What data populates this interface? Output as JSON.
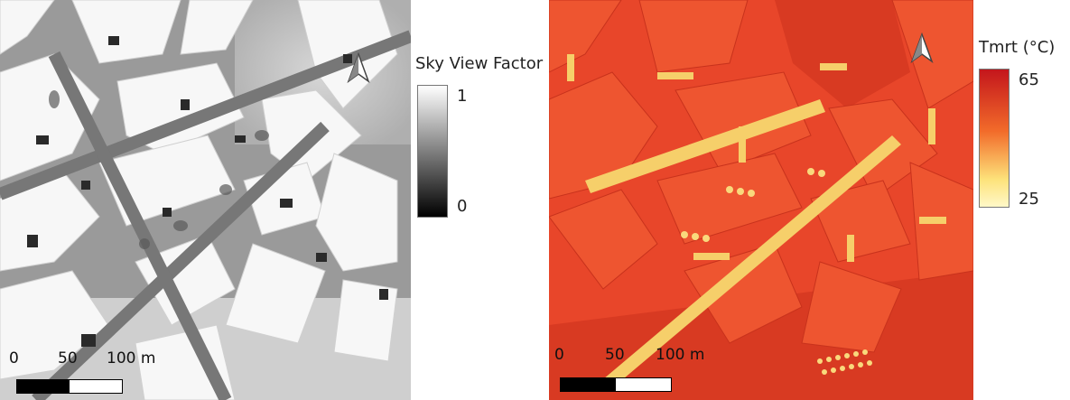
{
  "svf_map": {
    "legend_title": "Sky View Factor",
    "legend_max": "1",
    "legend_min": "0",
    "ramp_colors": [
      "#ffffff",
      "#000000"
    ],
    "scale_labels": [
      "0",
      "50",
      "100 m"
    ],
    "north_icon": "north-arrow-icon"
  },
  "tmrt_map": {
    "legend_title": "Tmrt (°C)",
    "legend_max": "65",
    "legend_min": "25",
    "ramp_colors": [
      "#c4161c",
      "#f26b2a",
      "#fde27a",
      "#fff8c8"
    ],
    "scale_labels": [
      "0",
      "50",
      "100 m"
    ],
    "north_icon": "north-arrow-icon"
  }
}
